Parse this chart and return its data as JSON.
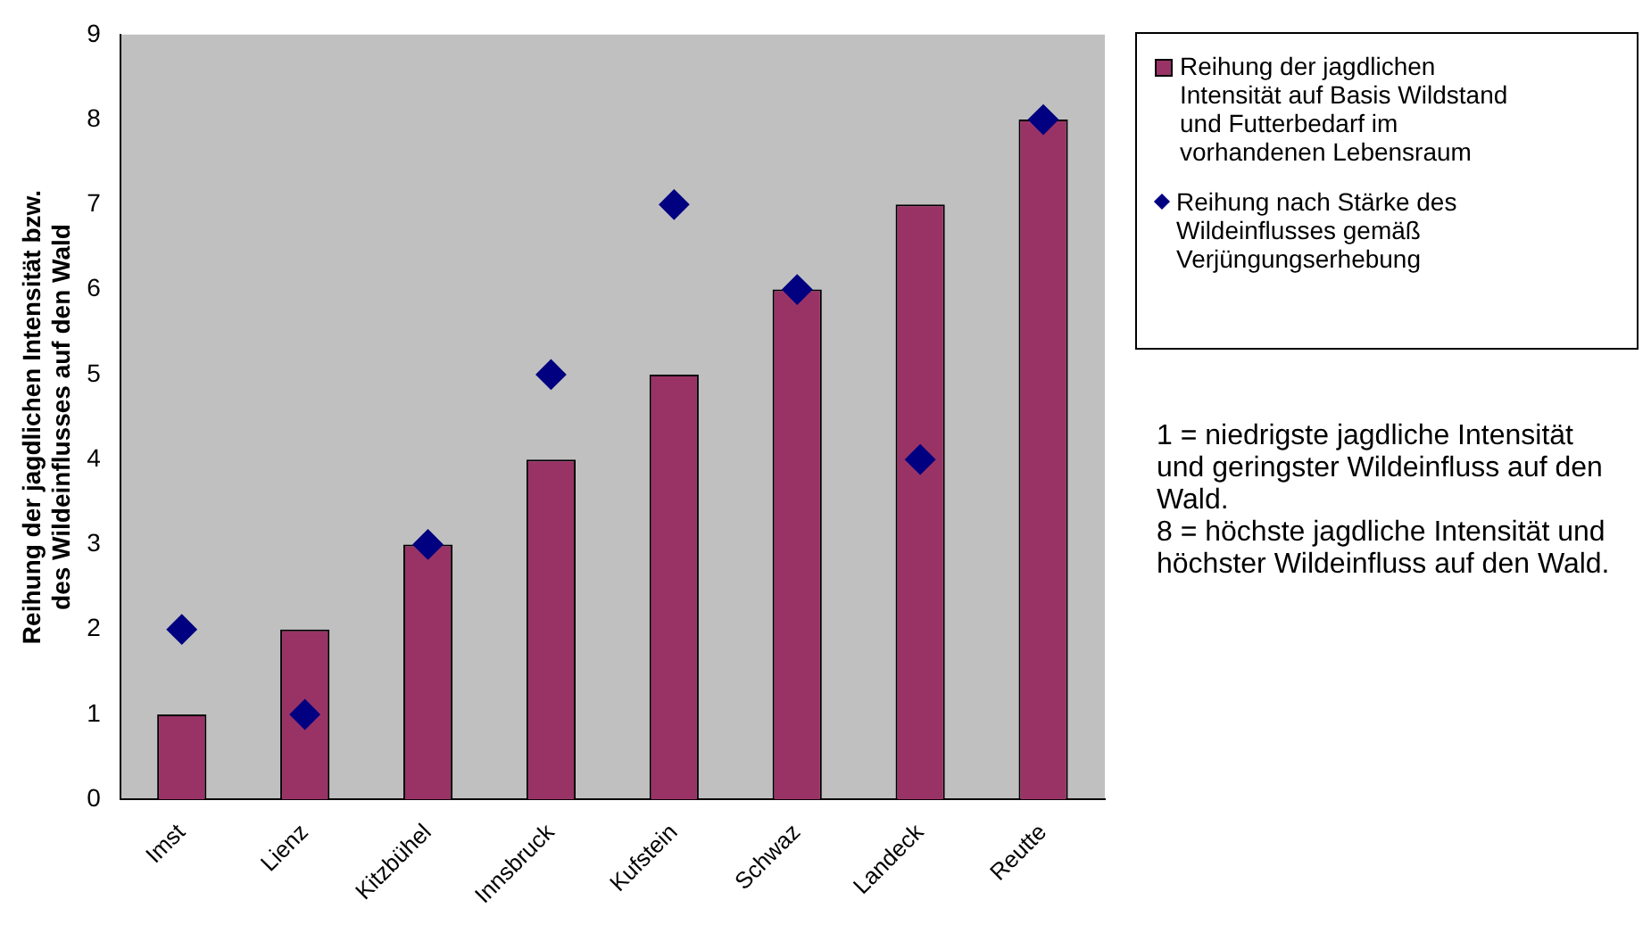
{
  "chart_data": {
    "type": "bar",
    "ylabel": "Reihung der jagdlichen Intensität bzw. des Wildeinflusses auf den Wald",
    "categories": [
      "Imst",
      "Lienz",
      "Kitzbühel",
      "Innsbruck",
      "Kufstein",
      "Schwaz",
      "Landeck",
      "Reutte"
    ],
    "series": [
      {
        "name": "Reihung der jagdlichen Intensität auf Basis Wildstand und Futterbedarf im vorhandenen Lebensraum",
        "color": "#993366",
        "values": [
          1,
          2,
          3,
          4,
          5,
          6,
          7,
          8
        ]
      },
      {
        "name": "Reihung nach Stärke des Wildeinflusses gemäß Verjüngungserhebung",
        "type": "scatter",
        "marker": "diamond",
        "color": "#000080",
        "x": [
          "Imst",
          "Lienz",
          "Kitzbühel",
          "Innsbruck",
          "Kufstein",
          "Schwaz",
          "Landeck",
          "Reutte"
        ],
        "values": [
          2,
          1,
          3,
          5,
          7,
          6,
          4,
          8
        ]
      }
    ],
    "ylim": [
      0,
      9
    ],
    "yticks": [
      0,
      1,
      2,
      3,
      4,
      5,
      6,
      7,
      8,
      9
    ],
    "grid": false,
    "legend": "right",
    "annotations": [
      "1 = niedrigste jagdliche Intensität und geringster Wildeinfluss auf den Wald.",
      "8 = höchste  jagdliche Intensität und höchster Wildeinfluss auf den Wald."
    ]
  }
}
